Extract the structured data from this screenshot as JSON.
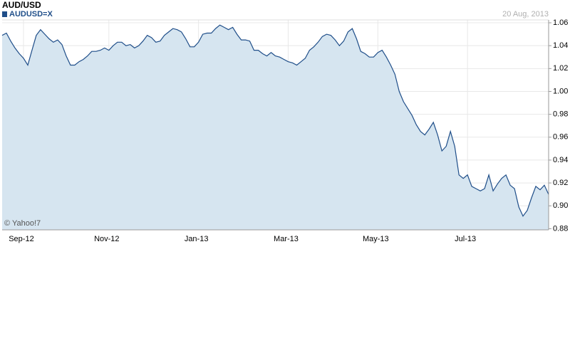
{
  "chart_data": {
    "type": "area",
    "title": "AUD/USD",
    "date": "20 Aug, 2013",
    "watermark": "© Yahoo!7",
    "grid": true,
    "fill_color": "#d6e5f0",
    "ylim": [
      0.879,
      1.0625
    ],
    "yticks": [
      0.88,
      {
        "value": 0.9,
        "label": "0.90"
      },
      0.92,
      0.94,
      0.96,
      0.98,
      {
        "value": 1.0,
        "label": "1.00"
      },
      1.02,
      1.04,
      1.06
    ],
    "categories": [
      null,
      null,
      null,
      null,
      null,
      "Sep-12",
      null,
      null,
      null,
      null,
      null,
      null,
      null,
      null,
      null,
      null,
      null,
      null,
      null,
      null,
      null,
      null,
      null,
      null,
      null,
      "Nov-12",
      null,
      null,
      null,
      null,
      null,
      null,
      null,
      null,
      null,
      null,
      null,
      null,
      null,
      null,
      null,
      null,
      null,
      null,
      null,
      null,
      "Jan-13",
      null,
      null,
      null,
      null,
      null,
      null,
      null,
      null,
      null,
      null,
      null,
      null,
      null,
      null,
      null,
      null,
      null,
      null,
      null,
      null,
      "Mar-13",
      null,
      null,
      null,
      null,
      null,
      null,
      null,
      null,
      null,
      null,
      null,
      null,
      null,
      null,
      null,
      null,
      null,
      null,
      null,
      null,
      "May-13",
      null,
      null,
      null,
      null,
      null,
      null,
      null,
      null,
      null,
      null,
      null,
      null,
      null,
      null,
      null,
      null,
      null,
      null,
      null,
      null,
      "Jul-13",
      null,
      null,
      null,
      null,
      null,
      null,
      null,
      null,
      null,
      null,
      null,
      null,
      null,
      null,
      null,
      null,
      null,
      null,
      null
    ],
    "series": [
      {
        "name": "AUDUSD=X",
        "color": "#1f4e89",
        "values": [
          1.049,
          1.051,
          1.044,
          1.038,
          1.033,
          1.029,
          1.023,
          1.036,
          1.049,
          1.054,
          1.05,
          1.046,
          1.043,
          1.045,
          1.041,
          1.031,
          1.023,
          1.023,
          1.026,
          1.028,
          1.031,
          1.035,
          1.035,
          1.036,
          1.038,
          1.036,
          1.04,
          1.043,
          1.043,
          1.04,
          1.041,
          1.038,
          1.04,
          1.044,
          1.049,
          1.047,
          1.043,
          1.044,
          1.049,
          1.052,
          1.055,
          1.054,
          1.052,
          1.046,
          1.039,
          1.039,
          1.043,
          1.05,
          1.051,
          1.051,
          1.055,
          1.058,
          1.056,
          1.054,
          1.056,
          1.05,
          1.045,
          1.045,
          1.044,
          1.036,
          1.036,
          1.033,
          1.031,
          1.034,
          1.031,
          1.03,
          1.028,
          1.026,
          1.025,
          1.023,
          1.026,
          1.029,
          1.036,
          1.039,
          1.043,
          1.048,
          1.05,
          1.049,
          1.045,
          1.04,
          1.044,
          1.052,
          1.055,
          1.046,
          1.035,
          1.033,
          1.03,
          1.03,
          1.034,
          1.036,
          1.03,
          1.023,
          1.015,
          1.0,
          0.991,
          0.985,
          0.979,
          0.971,
          0.965,
          0.962,
          0.967,
          0.973,
          0.962,
          0.948,
          0.952,
          0.965,
          0.952,
          0.927,
          0.924,
          0.927,
          0.917,
          0.915,
          0.913,
          0.915,
          0.927,
          0.913,
          0.919,
          0.924,
          0.927,
          0.918,
          0.915,
          0.899,
          0.891,
          0.896,
          0.907,
          0.917,
          0.914,
          0.918,
          0.91
        ]
      }
    ]
  }
}
